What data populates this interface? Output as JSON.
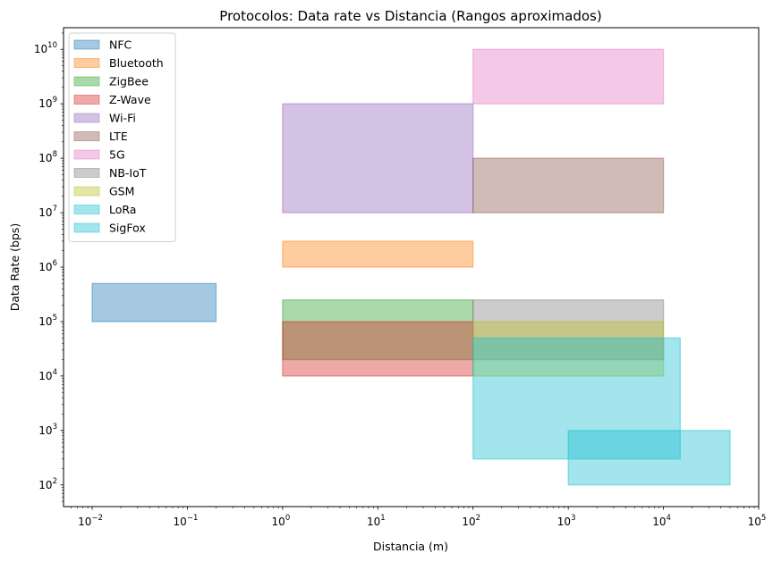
{
  "chart_data": {
    "type": "area",
    "title": "Protocolos: Data rate vs Distancia (Rangos aproximados)",
    "xlabel": "Distancia (m)",
    "ylabel": "Data Rate (bps)",
    "xscale": "log",
    "yscale": "log",
    "xlim": [
      0.005,
      100000
    ],
    "ylim": [
      40,
      25000000000
    ],
    "x_ticks": [
      "10^-2",
      "10^-1",
      "10^0",
      "10^1",
      "10^2",
      "10^3",
      "10^4",
      "10^5"
    ],
    "y_ticks": [
      "10^2",
      "10^3",
      "10^4",
      "10^5",
      "10^6",
      "10^7",
      "10^8",
      "10^9",
      "10^10"
    ],
    "grid": false,
    "legend_position": "top-left",
    "series": [
      {
        "name": "NFC",
        "color": "#1f77b4",
        "x_range": [
          0.01,
          0.2
        ],
        "y_range": [
          100000,
          500000
        ]
      },
      {
        "name": "Bluetooth",
        "color": "#ff7f0e",
        "x_range": [
          1,
          100
        ],
        "y_range": [
          1000000,
          3000000
        ]
      },
      {
        "name": "ZigBee",
        "color": "#2ca02c",
        "x_range": [
          1,
          100
        ],
        "y_range": [
          20000,
          250000
        ]
      },
      {
        "name": "Z-Wave",
        "color": "#d62728",
        "x_range": [
          1,
          100
        ],
        "y_range": [
          10000,
          100000
        ]
      },
      {
        "name": "Wi-Fi",
        "color": "#9467bd",
        "x_range": [
          1,
          100
        ],
        "y_range": [
          10000000,
          1000000000
        ]
      },
      {
        "name": "LTE",
        "color": "#8c564b",
        "x_range": [
          100,
          10000
        ],
        "y_range": [
          10000000,
          100000000
        ]
      },
      {
        "name": "5G",
        "color": "#e377c2",
        "x_range": [
          100,
          10000
        ],
        "y_range": [
          1000000000,
          10000000000
        ]
      },
      {
        "name": "NB-IoT",
        "color": "#7f7f7f",
        "x_range": [
          100,
          10000
        ],
        "y_range": [
          20000,
          250000
        ]
      },
      {
        "name": "GSM",
        "color": "#bcbd22",
        "x_range": [
          100,
          10000
        ],
        "y_range": [
          10000,
          100000
        ]
      },
      {
        "name": "LoRa",
        "color": "#17becf",
        "x_range": [
          100,
          15000
        ],
        "y_range": [
          300,
          50000
        ]
      },
      {
        "name": "SigFox",
        "color": "#17becf",
        "x_range": [
          1000,
          50000
        ],
        "y_range": [
          100,
          1000
        ]
      }
    ]
  }
}
